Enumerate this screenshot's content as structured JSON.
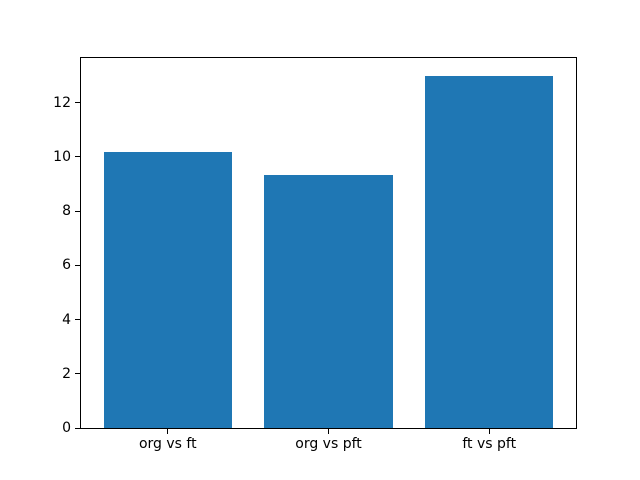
{
  "figure": {
    "background_color": "#ffffff"
  },
  "chart_data": {
    "type": "bar",
    "categories": [
      "org vs ft",
      "org vs pft",
      "ft vs pft"
    ],
    "values": [
      10.2,
      9.35,
      13.0
    ],
    "title": "",
    "xlabel": "",
    "ylabel": "",
    "ylim": [
      0,
      13.65
    ],
    "xlim": [
      -0.54,
      2.54
    ],
    "yticks": [
      0,
      2,
      4,
      6,
      8,
      10,
      12
    ],
    "ytick_labels": [
      "0",
      "2",
      "4",
      "6",
      "8",
      "10",
      "12"
    ],
    "bar_width_data_units": 0.8,
    "bar_color": "#1f77b4",
    "spine_color": "#000000",
    "tick_color": "#000000",
    "grid": false,
    "legend": "none"
  }
}
